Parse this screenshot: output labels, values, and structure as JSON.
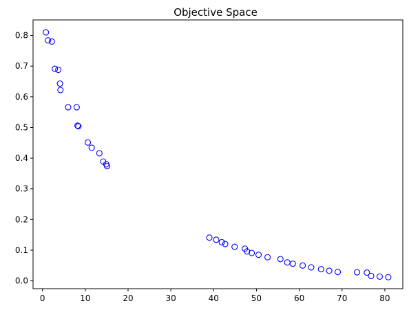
{
  "chart_data": {
    "type": "scatter",
    "title": "Objective Space",
    "xlabel": "",
    "ylabel": "",
    "xlim": [
      -2.2,
      84.2
    ],
    "ylim": [
      -0.0255,
      0.8505
    ],
    "x_ticks": [
      0,
      10,
      20,
      30,
      40,
      50,
      60,
      70,
      80
    ],
    "y_ticks": [
      0.0,
      0.1,
      0.2,
      0.3,
      0.4,
      0.5,
      0.6,
      0.7,
      0.8
    ],
    "x_tick_labels": [
      "0",
      "10",
      "20",
      "30",
      "40",
      "50",
      "60",
      "70",
      "80"
    ],
    "y_tick_labels": [
      "0.0",
      "0.1",
      "0.2",
      "0.3",
      "0.4",
      "0.5",
      "0.6",
      "0.7",
      "0.8"
    ],
    "grid": false,
    "marker": "open-circle",
    "marker_color": "#0000ff",
    "series": [
      {
        "x": [
          0.8,
          1.3,
          2.2,
          2.9,
          3.7,
          4.1,
          4.2,
          6.0,
          8.0,
          8.2,
          8.4,
          10.6,
          11.5,
          13.3,
          14.2,
          14.9,
          15.1,
          39.0,
          40.6,
          41.9,
          42.7,
          44.9,
          47.3,
          47.8,
          48.9,
          50.5,
          52.6,
          55.6,
          57.2,
          58.5,
          60.8,
          62.8,
          65.1,
          67.0,
          69.0,
          73.5,
          75.8,
          76.8,
          78.8,
          80.8
        ],
        "y": [
          0.81,
          0.784,
          0.78,
          0.691,
          0.688,
          0.643,
          0.622,
          0.566,
          0.566,
          0.506,
          0.504,
          0.451,
          0.434,
          0.416,
          0.389,
          0.38,
          0.374,
          0.141,
          0.134,
          0.126,
          0.12,
          0.111,
          0.105,
          0.096,
          0.091,
          0.085,
          0.077,
          0.071,
          0.06,
          0.056,
          0.05,
          0.044,
          0.038,
          0.033,
          0.029,
          0.028,
          0.027,
          0.016,
          0.014,
          0.012
        ]
      }
    ]
  }
}
